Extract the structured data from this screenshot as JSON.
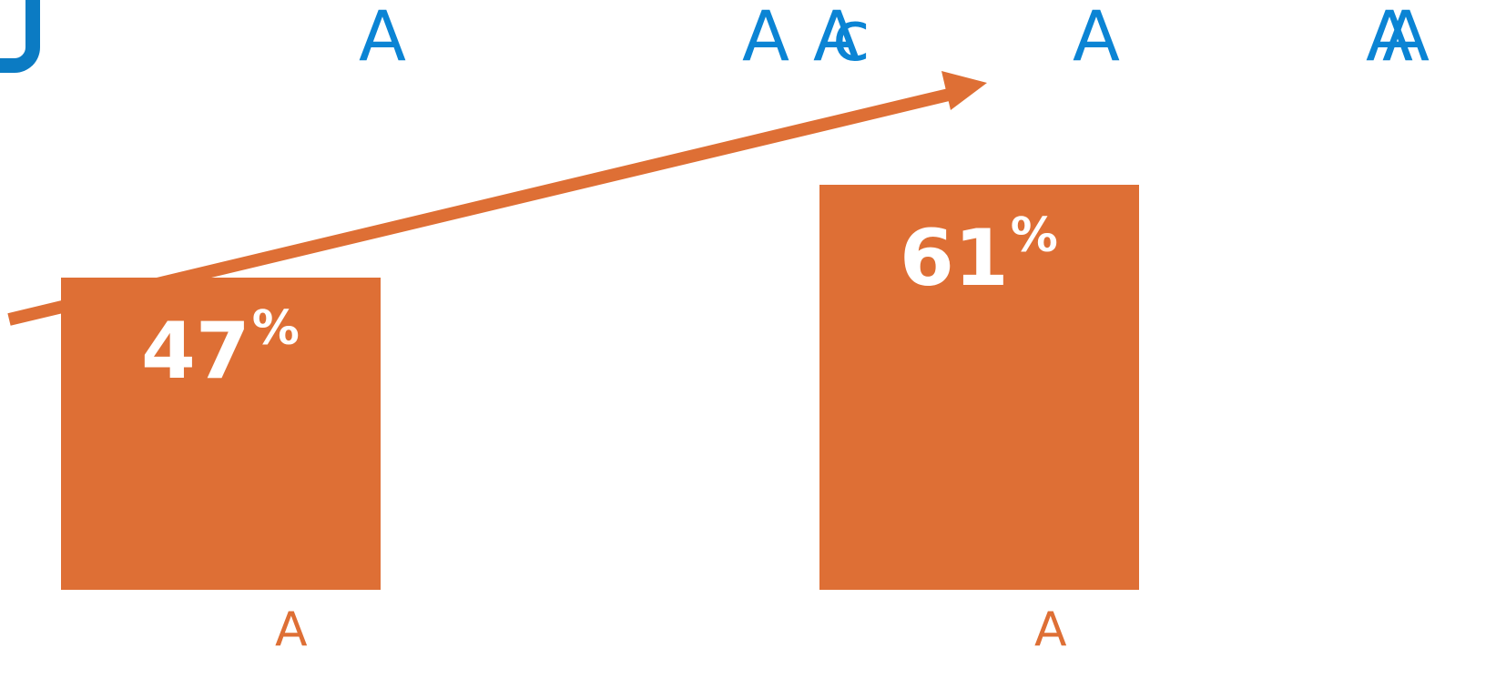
{
  "top_labels": [
    "A",
    "A",
    "A",
    "c",
    "A",
    "A",
    "A"
  ],
  "colors": {
    "bar": "#de6f35",
    "top_label": "#0b84d4",
    "logo": "#0b7bc3",
    "value_text": "#ffffff"
  },
  "chart_data": {
    "type": "bar",
    "categories": [
      "A",
      "A"
    ],
    "values": [
      47,
      61
    ],
    "value_labels": [
      "47",
      "61"
    ],
    "unit": "%",
    "title": "",
    "xlabel": "",
    "ylabel": "",
    "ylim": [
      0,
      70
    ],
    "grid": false,
    "trend_arrow": true
  }
}
